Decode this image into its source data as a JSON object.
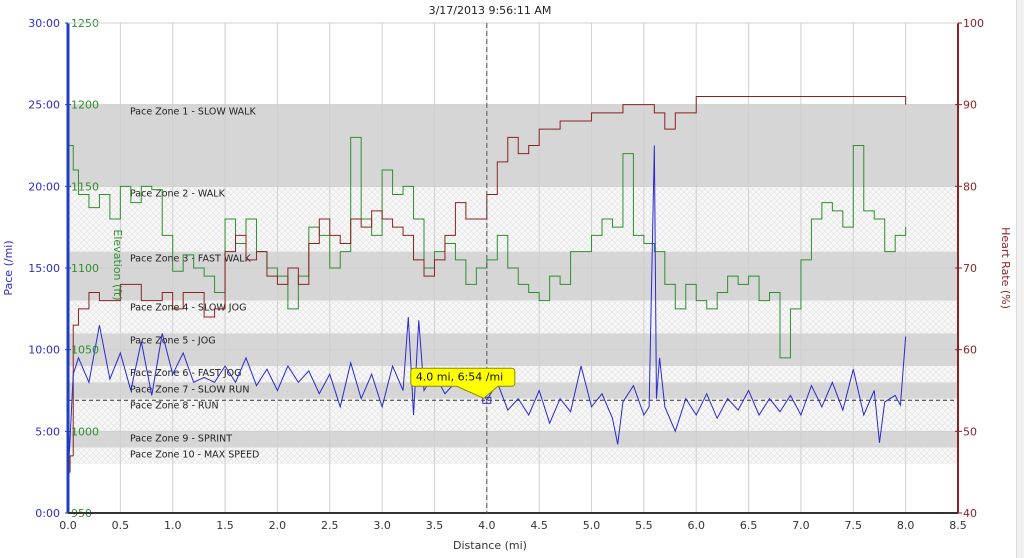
{
  "chart_data": {
    "type": "line",
    "title": "3/17/2013 9:56:11 AM",
    "xlabel": "Distance (mi)",
    "ylabel_left": "Pace (/mi)",
    "ylabel_elevation": "Elevation (ft)",
    "ylabel_right": "Heart Rate (%)",
    "xlim": [
      0,
      8.5
    ],
    "x_ticks": [
      "0.0",
      "0.5",
      "1.0",
      "1.5",
      "2.0",
      "2.5",
      "3.0",
      "3.5",
      "4.0",
      "4.5",
      "5.0",
      "5.5",
      "6.0",
      "6.5",
      "7.0",
      "7.5",
      "8.0",
      "8.5"
    ],
    "pace_ylim_min": [
      0,
      30
    ],
    "pace_ticks": [
      "0:00",
      "5:00",
      "10:00",
      "15:00",
      "20:00",
      "25:00",
      "30:00"
    ],
    "elevation_ylim": [
      950,
      1250
    ],
    "elevation_ticks": [
      "950",
      "1000",
      "1050",
      "1100",
      "1150",
      "1200",
      "1250"
    ],
    "hr_ylim": [
      40,
      100
    ],
    "hr_ticks": [
      "40",
      "50",
      "60",
      "70",
      "80",
      "90",
      "100"
    ],
    "grid": true,
    "colors": {
      "pace": "#2a2ad0",
      "elevation": "#2f8f2f",
      "heart_rate": "#8b2222",
      "zone_gray": "#d6d6d6",
      "axis_left": "#1f3fbf"
    },
    "zones": [
      {
        "label": "Pace Zone 1 - SLOW WALK",
        "from": 20,
        "to": 25,
        "style": "gray"
      },
      {
        "label": "Pace Zone 2 - WALK",
        "from": 16,
        "to": 20,
        "style": "hatch"
      },
      {
        "label": "Pace Zone 3 - FAST WALK",
        "from": 13,
        "to": 16,
        "style": "gray"
      },
      {
        "label": "Pace Zone 4 - SLOW JOG",
        "from": 11,
        "to": 13,
        "style": "hatch"
      },
      {
        "label": "Pace Zone 5 - JOG",
        "from": 9,
        "to": 11,
        "style": "gray"
      },
      {
        "label": "Pace Zone 6 - FAST JOG",
        "from": 8,
        "to": 9,
        "style": "hatch"
      },
      {
        "label": "Pace Zone 7 - SLOW RUN",
        "from": 7,
        "to": 8,
        "style": "gray"
      },
      {
        "label": "Pace Zone 8 - RUN",
        "from": 5,
        "to": 7,
        "style": "hatch"
      },
      {
        "label": "Pace Zone 9 - SPRINT",
        "from": 4,
        "to": 5,
        "style": "gray"
      },
      {
        "label": "Pace Zone 10 - MAX SPEED",
        "from": 3,
        "to": 4,
        "style": "hatch"
      }
    ],
    "average_pace_line": 6.9,
    "cursor": {
      "x": 4.0,
      "pace": 6.9,
      "label": "4.0 mi, 6:54 /mi"
    },
    "series": [
      {
        "name": "Pace",
        "axis": "pace",
        "x": [
          0,
          0.05,
          0.1,
          0.2,
          0.3,
          0.4,
          0.5,
          0.6,
          0.7,
          0.8,
          0.9,
          1.0,
          1.1,
          1.2,
          1.3,
          1.4,
          1.5,
          1.6,
          1.7,
          1.8,
          1.9,
          2.0,
          2.1,
          2.2,
          2.3,
          2.4,
          2.5,
          2.6,
          2.7,
          2.8,
          2.9,
          3.0,
          3.1,
          3.2,
          3.25,
          3.3,
          3.35,
          3.4,
          3.5,
          3.6,
          3.7,
          3.8,
          3.9,
          4.0,
          4.1,
          4.2,
          4.3,
          4.4,
          4.5,
          4.6,
          4.7,
          4.8,
          4.9,
          5.0,
          5.1,
          5.2,
          5.25,
          5.3,
          5.4,
          5.5,
          5.55,
          5.6,
          5.62,
          5.65,
          5.7,
          5.8,
          5.9,
          6.0,
          6.1,
          6.2,
          6.3,
          6.4,
          6.5,
          6.6,
          6.7,
          6.8,
          6.9,
          7.0,
          7.1,
          7.2,
          7.3,
          7.4,
          7.5,
          7.6,
          7.7,
          7.75,
          7.8,
          7.9,
          7.95,
          8.0
        ],
        "values": [
          2,
          8.5,
          9.5,
          8.0,
          11.5,
          8.2,
          9.8,
          7.5,
          10.5,
          7.2,
          11.0,
          8.5,
          9.8,
          8.0,
          8.3,
          8.0,
          9.0,
          8.0,
          9.5,
          7.8,
          8.8,
          7.5,
          9.0,
          8.0,
          8.7,
          7.3,
          8.5,
          6.5,
          9.2,
          7.0,
          8.5,
          6.5,
          9.0,
          7.5,
          12.0,
          6.0,
          11.8,
          7.5,
          8.5,
          7.3,
          8.0,
          7.5,
          8.2,
          6.9,
          8.0,
          6.3,
          7.0,
          6.0,
          7.5,
          5.5,
          7.0,
          6.2,
          9.0,
          6.5,
          7.3,
          5.8,
          4.2,
          6.8,
          7.8,
          6.0,
          6.5,
          22.5,
          7.0,
          9.5,
          6.5,
          5.0,
          7.0,
          6.0,
          7.3,
          5.8,
          7.0,
          6.3,
          7.5,
          6.0,
          7.0,
          6.2,
          7.2,
          6.0,
          7.8,
          6.5,
          8.0,
          6.3,
          8.8,
          6.0,
          7.5,
          4.3,
          6.8,
          7.2,
          6.6,
          10.8
        ]
      },
      {
        "name": "Elevation",
        "axis": "elevation",
        "x": [
          0,
          0.05,
          0.1,
          0.2,
          0.3,
          0.4,
          0.5,
          0.6,
          0.7,
          0.8,
          0.9,
          1.0,
          1.1,
          1.2,
          1.3,
          1.4,
          1.5,
          1.6,
          1.7,
          1.8,
          1.9,
          2.0,
          2.1,
          2.2,
          2.3,
          2.4,
          2.5,
          2.6,
          2.7,
          2.8,
          2.9,
          3.0,
          3.1,
          3.2,
          3.3,
          3.4,
          3.5,
          3.6,
          3.7,
          3.8,
          3.9,
          4.0,
          4.1,
          4.2,
          4.3,
          4.4,
          4.5,
          4.6,
          4.7,
          4.8,
          5.0,
          5.1,
          5.2,
          5.3,
          5.4,
          5.5,
          5.6,
          5.7,
          5.8,
          5.9,
          6.0,
          6.1,
          6.2,
          6.3,
          6.4,
          6.5,
          6.6,
          6.7,
          6.8,
          6.9,
          7.0,
          7.1,
          7.2,
          7.3,
          7.4,
          7.5,
          7.6,
          7.7,
          7.8,
          7.9,
          8.0
        ],
        "values": [
          1175,
          1160,
          1145,
          1137,
          1145,
          1130,
          1150,
          1140,
          1150,
          1148,
          1120,
          1098,
          1108,
          1100,
          1095,
          1085,
          1130,
          1115,
          1130,
          1110,
          1100,
          1095,
          1075,
          1095,
          1125,
          1120,
          1100,
          1110,
          1180,
          1130,
          1120,
          1160,
          1145,
          1150,
          1130,
          1100,
          1110,
          1115,
          1105,
          1090,
          1100,
          1105,
          1120,
          1100,
          1090,
          1085,
          1080,
          1095,
          1090,
          1110,
          1120,
          1130,
          1125,
          1170,
          1120,
          1115,
          1110,
          1090,
          1075,
          1090,
          1080,
          1075,
          1085,
          1095,
          1090,
          1095,
          1080,
          1085,
          1045,
          1075,
          1105,
          1130,
          1140,
          1135,
          1125,
          1175,
          1135,
          1130,
          1110,
          1120,
          1125
        ]
      },
      {
        "name": "Heart Rate",
        "axis": "hr",
        "x": [
          0,
          0.02,
          0.05,
          0.1,
          0.2,
          0.3,
          0.5,
          0.7,
          0.9,
          1.0,
          1.1,
          1.3,
          1.4,
          1.5,
          1.6,
          1.7,
          1.8,
          1.9,
          2.0,
          2.1,
          2.2,
          2.3,
          2.4,
          2.5,
          2.6,
          2.7,
          2.8,
          2.9,
          3.0,
          3.1,
          3.2,
          3.3,
          3.4,
          3.5,
          3.6,
          3.7,
          3.8,
          3.9,
          4.0,
          4.1,
          4.2,
          4.3,
          4.4,
          4.5,
          4.7,
          4.9,
          5.0,
          5.3,
          5.5,
          5.6,
          5.7,
          5.8,
          6.0,
          6.5,
          7.0,
          7.5,
          7.9,
          8.0
        ],
        "values": [
          45,
          47,
          63,
          65,
          67,
          66,
          68,
          66,
          67,
          65,
          67,
          64,
          65,
          72,
          74,
          71,
          72,
          69,
          68,
          70,
          68,
          73,
          76,
          74,
          73,
          76,
          75,
          77,
          76,
          75,
          74,
          71,
          69,
          71,
          74,
          78,
          76,
          76,
          79,
          83,
          86,
          84,
          85,
          87,
          88,
          88,
          89,
          90,
          90,
          89,
          87,
          89,
          91,
          91,
          91,
          91,
          91,
          90
        ]
      }
    ]
  }
}
